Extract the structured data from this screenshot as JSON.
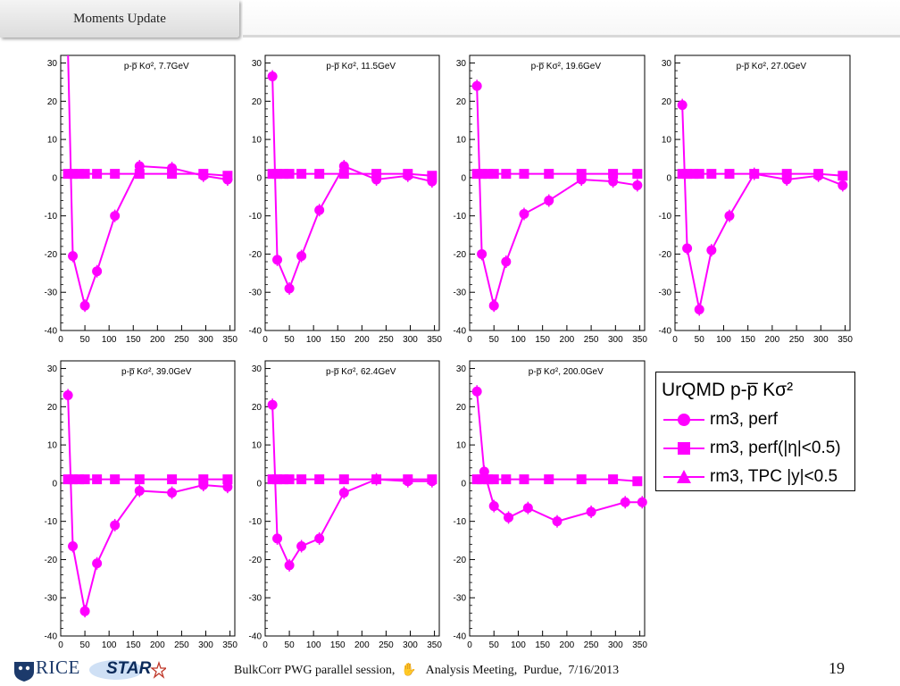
{
  "header": {
    "title": "Moments Update"
  },
  "chart_data": [
    {
      "type": "line",
      "title": "p-p̅ Kσ², 7.7GeV",
      "xlim": [
        0,
        360
      ],
      "ylim": [
        -40,
        32
      ],
      "xticks": [
        0,
        50,
        100,
        150,
        200,
        250,
        300,
        350
      ],
      "yticks": [
        -40,
        -30,
        -20,
        -10,
        0,
        10,
        20,
        30
      ],
      "grid": false,
      "series": [
        {
          "name": "rm3, perf",
          "x": [
            15,
            25,
            50,
            75,
            112,
            163,
            230,
            295,
            345
          ],
          "y": [
            33,
            -20.5,
            -33.5,
            -24.5,
            -10,
            3,
            2.5,
            0.5,
            -0.5
          ]
        },
        {
          "name": "rm3, perf(|η|<0.5)",
          "x": [
            15,
            25,
            38,
            50,
            75,
            112,
            163,
            230,
            295,
            345
          ],
          "y": [
            1,
            1,
            1,
            1,
            1,
            1,
            1,
            1,
            1,
            0.5
          ]
        }
      ]
    },
    {
      "type": "line",
      "title": "p-p̅ Kσ², 11.5GeV",
      "xlim": [
        0,
        360
      ],
      "ylim": [
        -40,
        32
      ],
      "xticks": [
        0,
        50,
        100,
        150,
        200,
        250,
        300,
        350
      ],
      "yticks": [
        -40,
        -30,
        -20,
        -10,
        0,
        10,
        20,
        30
      ],
      "grid": false,
      "series": [
        {
          "name": "rm3, perf",
          "x": [
            15,
            25,
            50,
            75,
            112,
            163,
            230,
            295,
            345
          ],
          "y": [
            26.5,
            -21.5,
            -29,
            -20.5,
            -8.5,
            3,
            -0.5,
            0.5,
            -1
          ]
        },
        {
          "name": "rm3, perf(|η|<0.5)",
          "x": [
            15,
            25,
            38,
            50,
            75,
            112,
            163,
            230,
            295,
            345
          ],
          "y": [
            1,
            1,
            1,
            1,
            1,
            1,
            1,
            1,
            1,
            0.5
          ]
        }
      ]
    },
    {
      "type": "line",
      "title": "p-p̅ Kσ², 19.6GeV",
      "xlim": [
        0,
        360
      ],
      "ylim": [
        -40,
        32
      ],
      "xticks": [
        0,
        50,
        100,
        150,
        200,
        250,
        300,
        350
      ],
      "yticks": [
        -40,
        -30,
        -20,
        -10,
        0,
        10,
        20,
        30
      ],
      "grid": false,
      "series": [
        {
          "name": "rm3, perf",
          "x": [
            15,
            25,
            50,
            75,
            112,
            163,
            230,
            295,
            345
          ],
          "y": [
            24,
            -20,
            -33.5,
            -22,
            -9.5,
            -6,
            -0.5,
            -1,
            -2
          ]
        },
        {
          "name": "rm3, perf(|η|<0.5)",
          "x": [
            15,
            25,
            38,
            50,
            75,
            112,
            163,
            230,
            295,
            345
          ],
          "y": [
            1,
            1,
            1,
            1,
            1,
            1,
            1,
            1,
            1,
            1
          ]
        }
      ]
    },
    {
      "type": "line",
      "title": "p-p̅ Kσ², 27.0GeV",
      "xlim": [
        0,
        360
      ],
      "ylim": [
        -40,
        32
      ],
      "xticks": [
        0,
        50,
        100,
        150,
        200,
        250,
        300,
        350
      ],
      "yticks": [
        -40,
        -30,
        -20,
        -10,
        0,
        10,
        20,
        30
      ],
      "grid": false,
      "series": [
        {
          "name": "rm3, perf",
          "x": [
            15,
            25,
            50,
            75,
            112,
            163,
            230,
            295,
            345
          ],
          "y": [
            19,
            -18.5,
            -34.5,
            -19,
            -10,
            1,
            -0.5,
            0.5,
            -2
          ]
        },
        {
          "name": "rm3, perf(|η|<0.5)",
          "x": [
            15,
            25,
            38,
            50,
            75,
            112,
            163,
            230,
            295,
            345
          ],
          "y": [
            1,
            1,
            1,
            1,
            1,
            1,
            1,
            1,
            1,
            0.5
          ]
        }
      ]
    },
    {
      "type": "line",
      "title": "p-p̅ Kσ², 39.0GeV",
      "xlim": [
        0,
        360
      ],
      "ylim": [
        -40,
        32
      ],
      "xticks": [
        0,
        50,
        100,
        150,
        200,
        250,
        300,
        350
      ],
      "yticks": [
        -40,
        -30,
        -20,
        -10,
        0,
        10,
        20,
        30
      ],
      "grid": false,
      "series": [
        {
          "name": "rm3, perf",
          "x": [
            15,
            25,
            50,
            75,
            112,
            163,
            230,
            295,
            345
          ],
          "y": [
            23,
            -16.5,
            -33.5,
            -21,
            -11,
            -2,
            -2.5,
            -0.5,
            -1
          ]
        },
        {
          "name": "rm3, perf(|η|<0.5)",
          "x": [
            15,
            25,
            38,
            50,
            75,
            112,
            163,
            230,
            295,
            345
          ],
          "y": [
            1,
            1,
            1,
            1,
            1,
            1,
            1,
            1,
            1,
            1
          ]
        }
      ]
    },
    {
      "type": "line",
      "title": "p-p̅ Kσ², 62.4GeV",
      "xlim": [
        0,
        360
      ],
      "ylim": [
        -40,
        32
      ],
      "xticks": [
        0,
        50,
        100,
        150,
        200,
        250,
        300,
        350
      ],
      "yticks": [
        -40,
        -30,
        -20,
        -10,
        0,
        10,
        20,
        30
      ],
      "grid": false,
      "series": [
        {
          "name": "rm3, perf",
          "x": [
            15,
            25,
            50,
            75,
            112,
            163,
            230,
            295,
            345
          ],
          "y": [
            20.5,
            -14.5,
            -21.5,
            -16.5,
            -14.5,
            -2.5,
            1,
            0.5,
            0.5
          ]
        },
        {
          "name": "rm3, perf(|η|<0.5)",
          "x": [
            15,
            25,
            38,
            50,
            75,
            112,
            163,
            230,
            295,
            345
          ],
          "y": [
            1,
            1,
            1,
            1,
            1,
            1,
            1,
            1,
            1,
            1
          ]
        }
      ]
    },
    {
      "type": "line",
      "title": "p-p̅ Kσ², 200.0GeV",
      "xlim": [
        0,
        360
      ],
      "ylim": [
        -40,
        32
      ],
      "xticks": [
        0,
        50,
        100,
        150,
        200,
        250,
        300,
        350
      ],
      "yticks": [
        -40,
        -30,
        -20,
        -10,
        0,
        10,
        20,
        30
      ],
      "grid": false,
      "series": [
        {
          "name": "rm3, perf",
          "x": [
            15,
            30,
            50,
            80,
            120,
            180,
            250,
            320,
            355
          ],
          "y": [
            24,
            3,
            -6,
            -9,
            -6.5,
            -10,
            -7.5,
            -5,
            -5
          ]
        },
        {
          "name": "rm3, perf(|η|<0.5)",
          "x": [
            15,
            25,
            38,
            50,
            75,
            112,
            163,
            230,
            295,
            345
          ],
          "y": [
            1,
            1,
            1,
            1,
            1,
            1,
            1,
            1,
            1,
            0.5
          ]
        }
      ]
    }
  ],
  "legend": {
    "title": "UrQMD p-p̅ Kσ²",
    "placement": "right of bottom row",
    "items": [
      {
        "label": "rm3, perf",
        "marker": "circle"
      },
      {
        "label": "rm3, perf(|η|<0.5)",
        "marker": "square"
      },
      {
        "label": "rm3, TPC |y|<0.5",
        "marker": "triangle"
      }
    ]
  },
  "colors": {
    "series": "#ff00ff",
    "axis": "#000000",
    "footer_logo": "#1c3a6b"
  },
  "footer": {
    "rice_label": "RICE",
    "star_label": "STAR",
    "text": "BulkCorr PWG parallel session,  ✋   Analysis Meeting,  Purdue,  7/16/2013",
    "page_number": "19"
  }
}
